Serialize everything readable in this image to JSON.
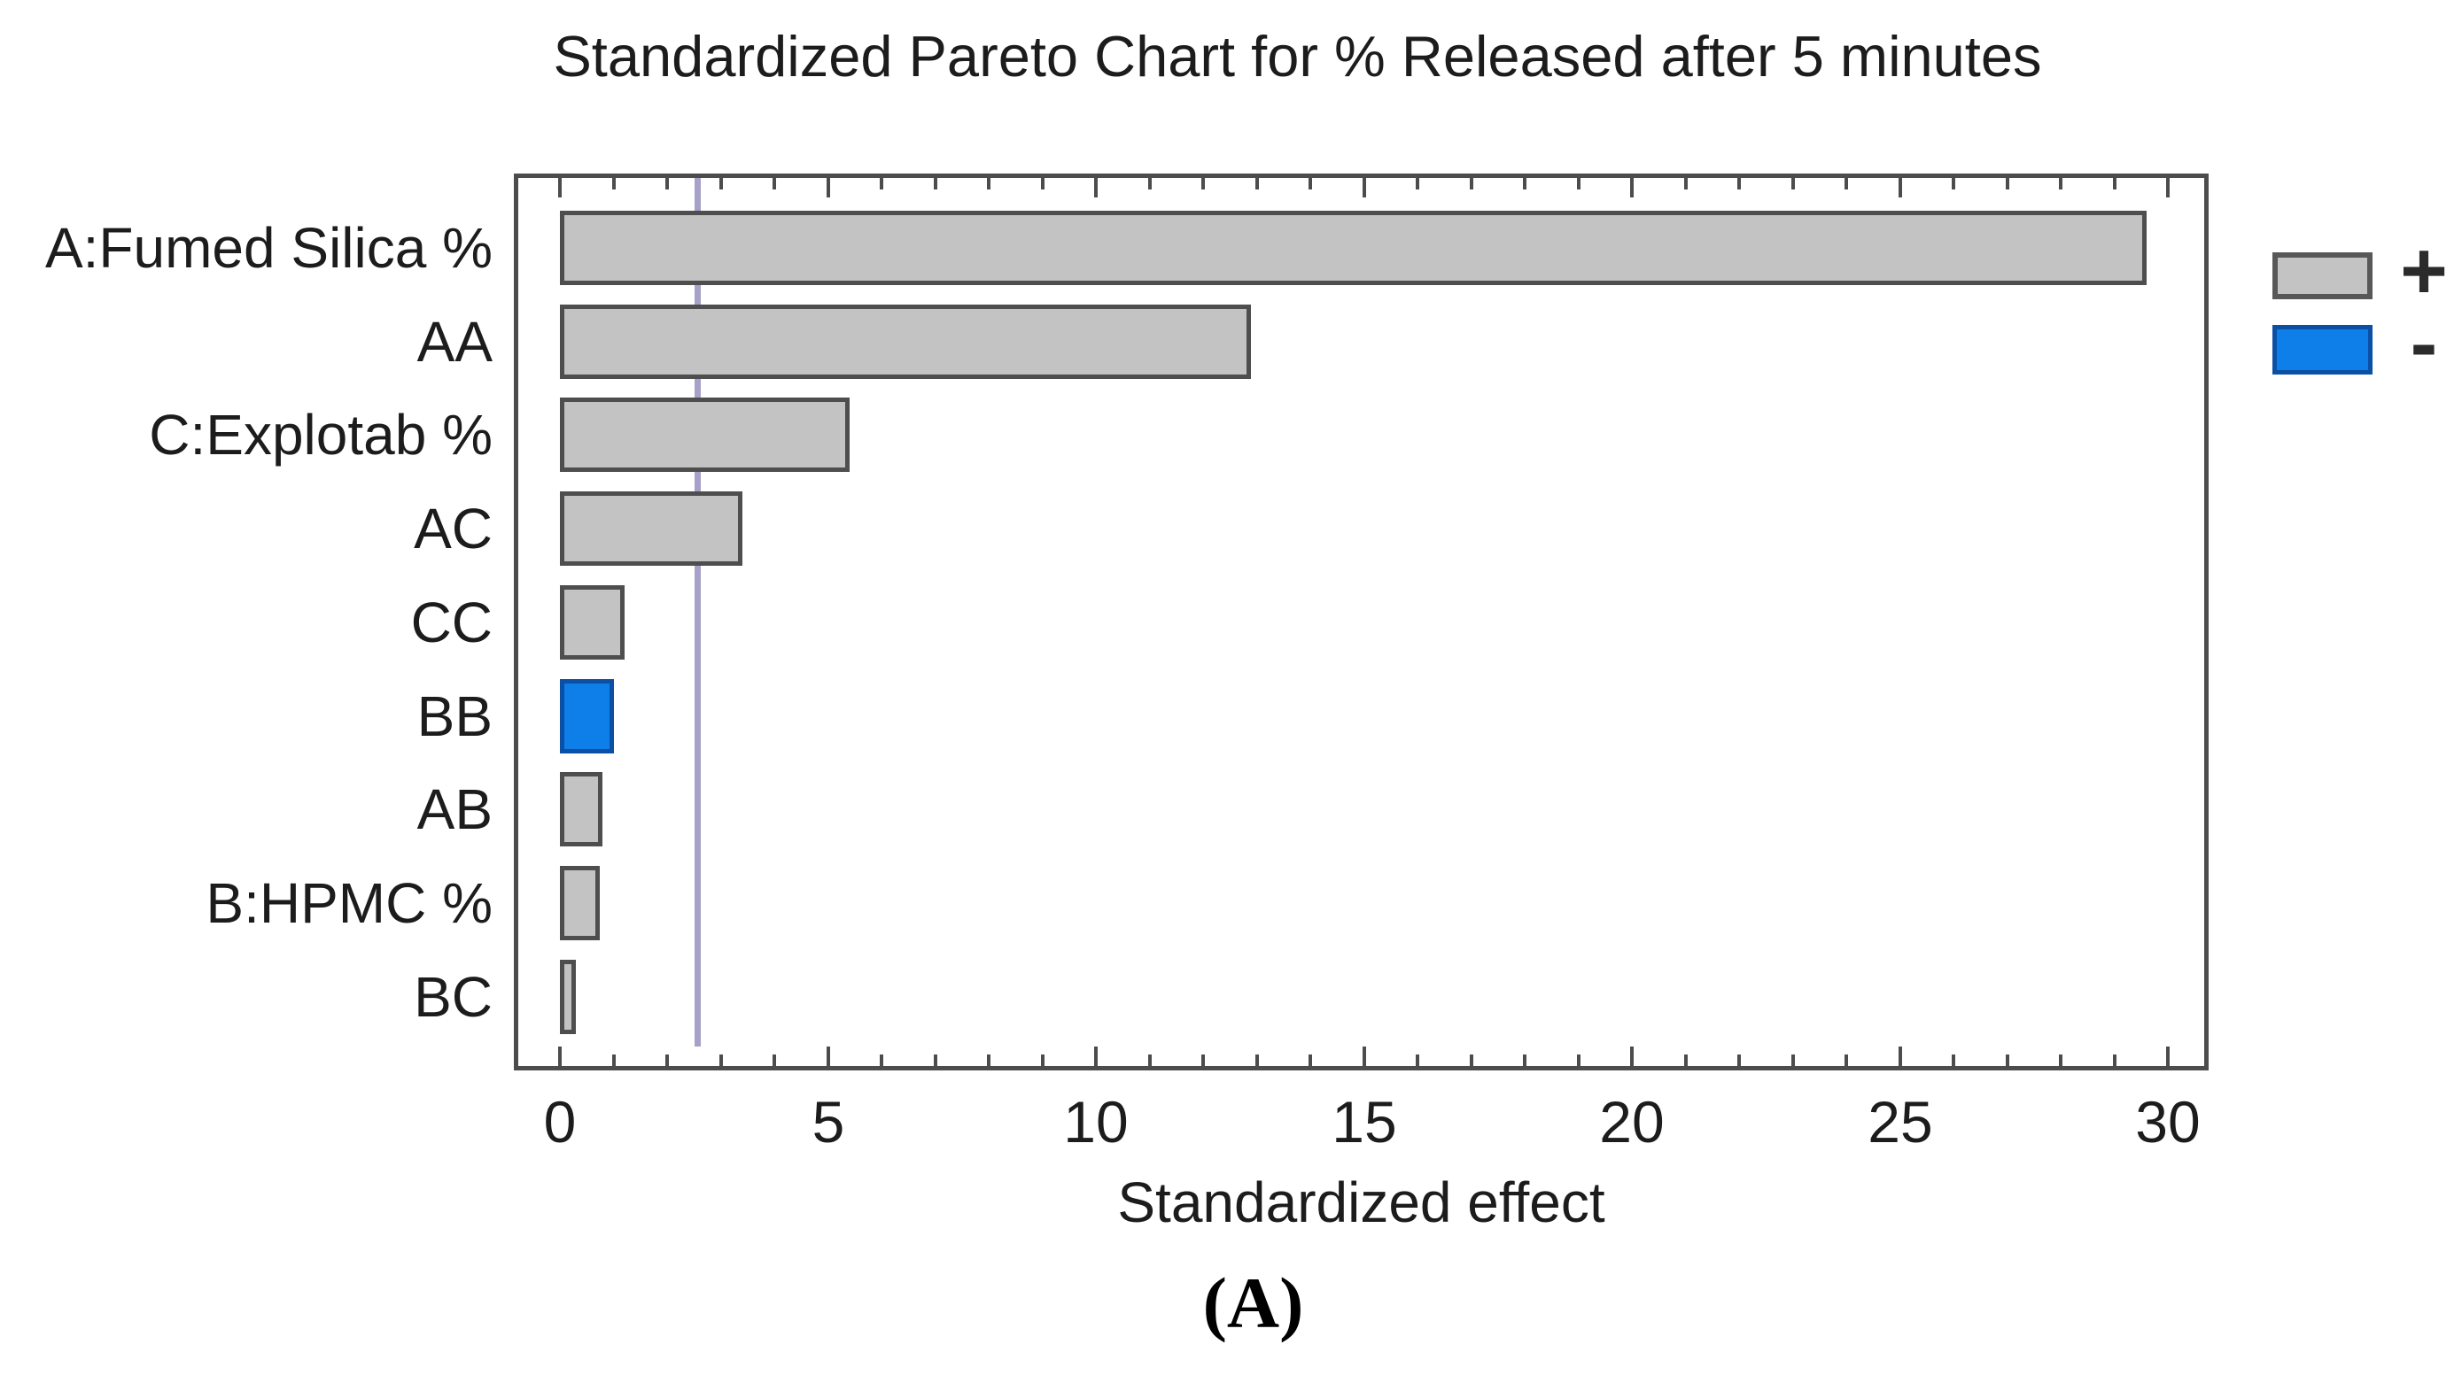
{
  "figure": {
    "caption": "(A)"
  },
  "chart_data": {
    "type": "bar",
    "orientation": "horizontal",
    "title": "Standardized Pareto Chart for % Released after 5 minutes",
    "xlabel": "Standardized effect",
    "ylabel": "",
    "categories": [
      "A:Fumed Silica %",
      "AA",
      "C:Explotab %",
      "AC",
      "CC",
      "BB",
      "AB",
      "B:HPMC %",
      "BC"
    ],
    "series": [
      {
        "name": "Standardized effect magnitude",
        "values": [
          29.6,
          12.9,
          5.4,
          3.4,
          1.2,
          1.0,
          0.8,
          0.75,
          0.3
        ]
      }
    ],
    "bar_signs": [
      "+",
      "+",
      "+",
      "+",
      "+",
      "-",
      "+",
      "+",
      "+"
    ],
    "xlim": [
      0,
      30.8
    ],
    "xticks": [
      0,
      5,
      10,
      15,
      20,
      25,
      30
    ],
    "minor_tick_step": 1,
    "reference_line_x": 2.56,
    "grid": false,
    "legend": {
      "position": "right",
      "entries": [
        {
          "label": "+",
          "color": "#c3c3c3"
        },
        {
          "label": "-",
          "color": "#0e7ee9"
        }
      ]
    },
    "colors": {
      "positive_fill": "#c3c3c3",
      "positive_border": "#4e4e4e",
      "negative_fill": "#0e7ee9",
      "negative_border": "#0b50a4",
      "reference_line": "#9b97c3",
      "axis": "#4c4c4c",
      "text": "#1f1f1f"
    }
  }
}
